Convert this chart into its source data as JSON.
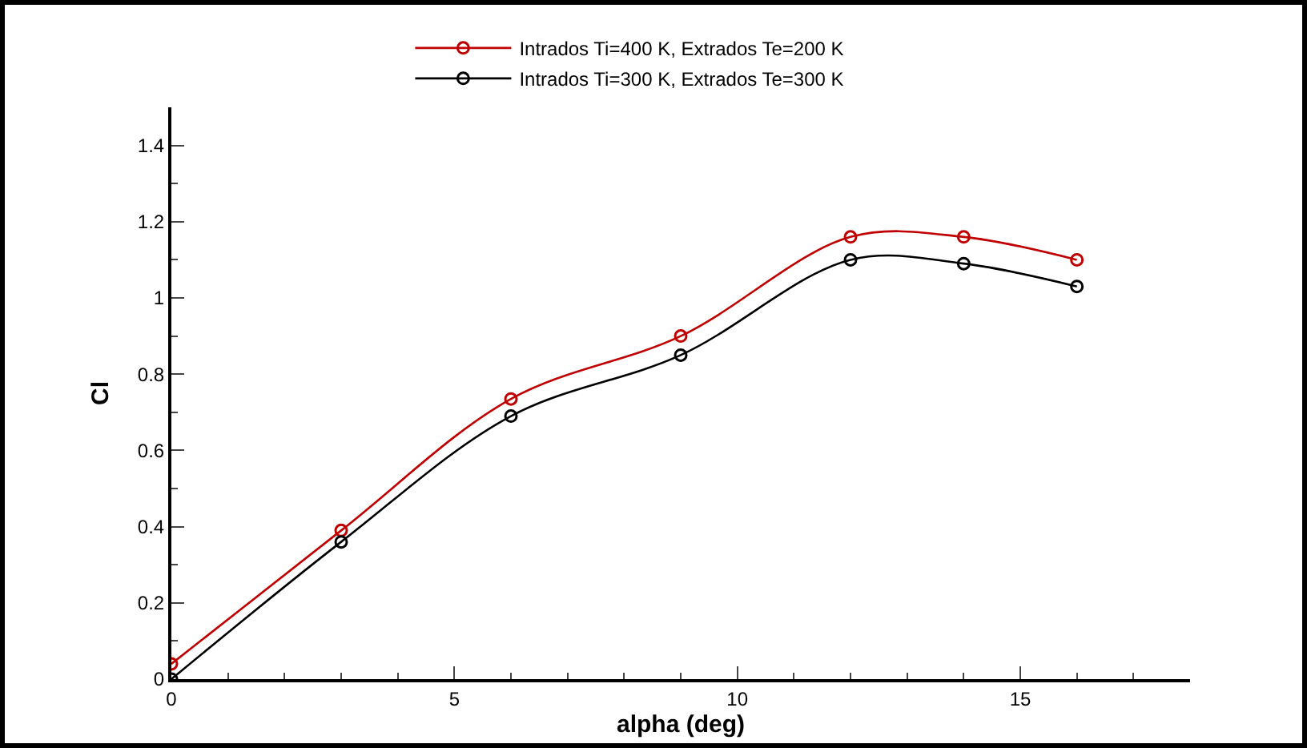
{
  "chart_data": {
    "type": "line",
    "xlabel": "alpha (deg)",
    "ylabel": "Cl",
    "x": [
      0,
      3,
      6,
      9,
      12,
      14,
      16
    ],
    "series": [
      {
        "name": "Intrados Ti=400 K, Extrados Te=200 K",
        "color": "#c00000",
        "values": [
          0.04,
          0.39,
          0.735,
          0.9,
          1.16,
          1.16,
          1.1
        ]
      },
      {
        "name": "Intrados Ti=300 K, Extrados Te=300 K",
        "color": "#000000",
        "values": [
          0.0,
          0.36,
          0.69,
          0.85,
          1.1,
          1.09,
          1.03
        ]
      }
    ],
    "xlim": [
      0,
      18
    ],
    "xticks": [
      0,
      5,
      10,
      15
    ],
    "ylim": [
      0,
      1.5
    ],
    "yticks": [
      0,
      0.2,
      0.4,
      0.6,
      0.8,
      1,
      1.2,
      1.4
    ],
    "grid": false,
    "legend": "top",
    "marker": "circle",
    "line_style": "solid"
  }
}
